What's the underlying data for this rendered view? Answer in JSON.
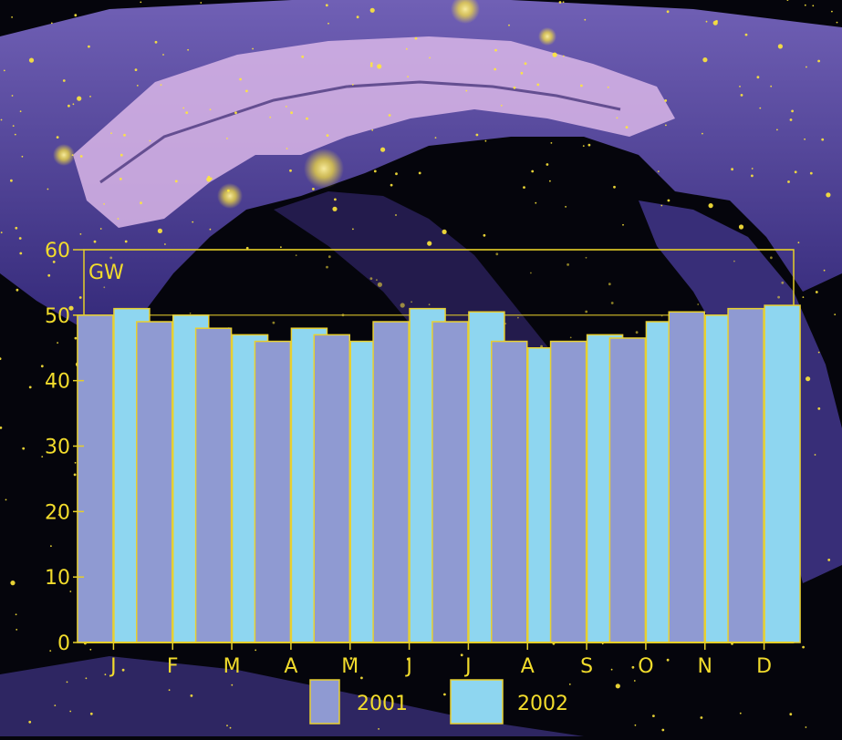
{
  "colors": {
    "axis_text": "#f2dc2c",
    "frame": "#e6cf28",
    "gridline": "#d8c02a",
    "bar_2001": "#8f9ad2",
    "bar_2002": "#8ed6f0",
    "bar_outline": "#e8d030",
    "background_dark": "#05050c",
    "mountain_light": "#d9b6e8",
    "mountain_mid": "#6a5ab8",
    "city_lights": "#ffe83a"
  },
  "chart_data": {
    "type": "bar",
    "unit_label": "GW",
    "categories": [
      "J",
      "F",
      "M",
      "A",
      "M",
      "J",
      "J",
      "A",
      "S",
      "O",
      "N",
      "D"
    ],
    "series": [
      {
        "name": "2001",
        "values": [
          50,
          49,
          48,
          46,
          47,
          49,
          49,
          46,
          46,
          46.5,
          50.5,
          51
        ]
      },
      {
        "name": "2002",
        "values": [
          51,
          50,
          47,
          48,
          46,
          51,
          50.5,
          45,
          47,
          49,
          50,
          51.5
        ]
      }
    ],
    "ylim": [
      0,
      60
    ],
    "yticks": [
      0,
      10,
      20,
      30,
      40,
      50,
      60
    ],
    "grid": true,
    "legend_position": "bottom-center"
  }
}
